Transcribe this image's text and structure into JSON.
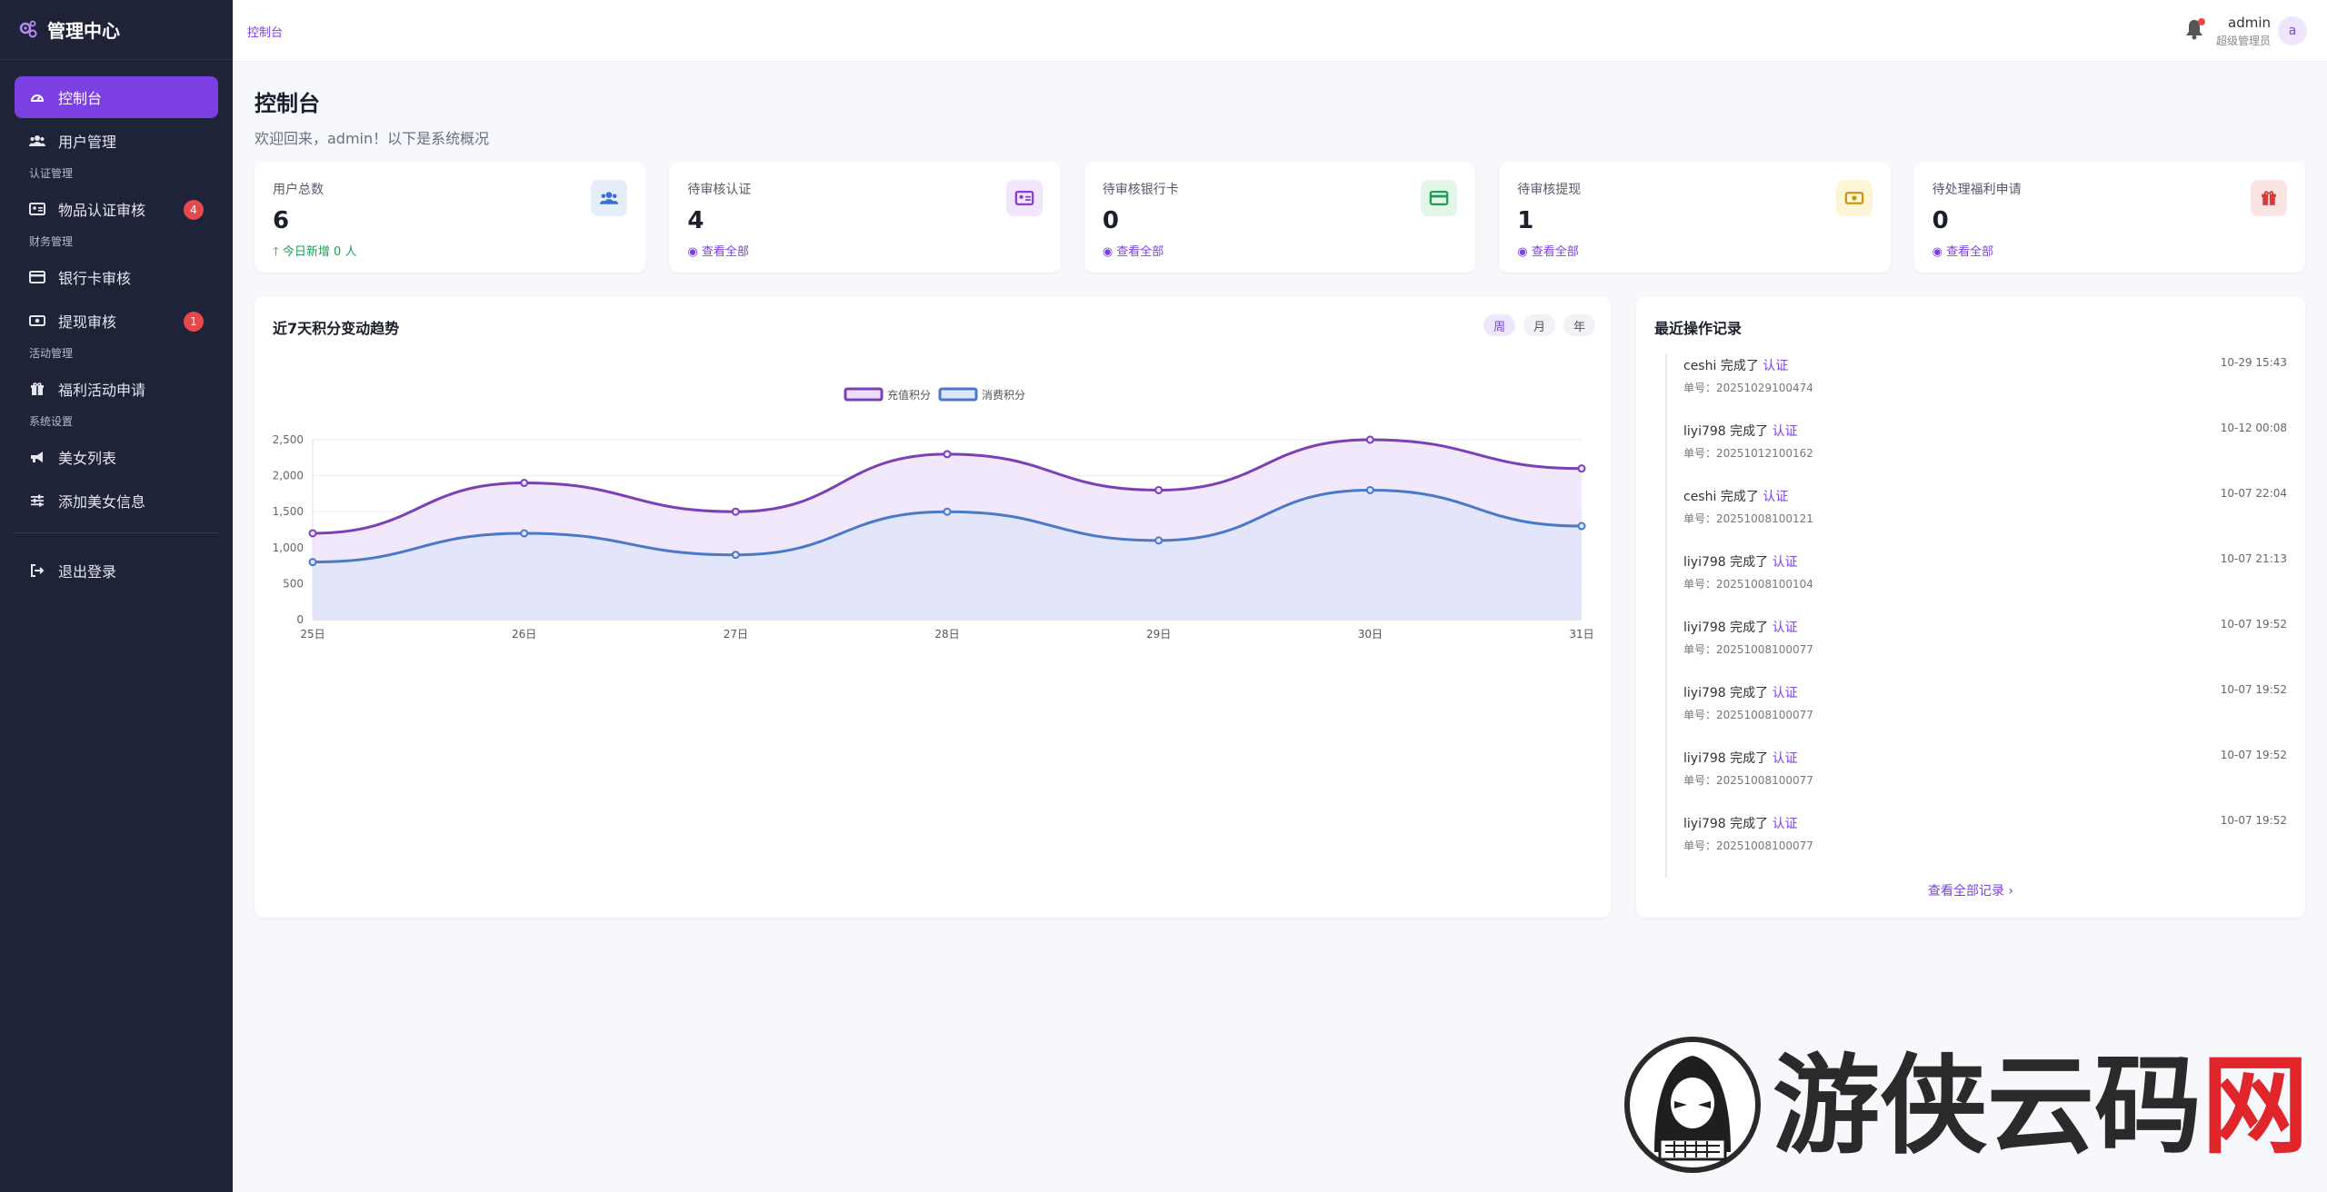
{
  "brand": {
    "title": "管理中心"
  },
  "sidebar": {
    "items": [
      {
        "label": "控制台",
        "icon": "dashboard-icon",
        "active": true
      },
      {
        "label": "用户管理",
        "icon": "users-icon"
      },
      {
        "section": "认证管理"
      },
      {
        "label": "物品认证审核",
        "icon": "id-card-icon",
        "badge": "4"
      },
      {
        "section": "财务管理"
      },
      {
        "label": "银行卡审核",
        "icon": "credit-card-icon"
      },
      {
        "label": "提现审核",
        "icon": "money-icon",
        "badge": "1"
      },
      {
        "section": "活动管理"
      },
      {
        "label": "福利活动申请",
        "icon": "gift-icon"
      },
      {
        "section": "系统设置"
      },
      {
        "label": "美女列表",
        "icon": "megaphone-icon"
      },
      {
        "label": "添加美女信息",
        "icon": "sliders-icon"
      },
      {
        "label": "退出登录",
        "icon": "logout-icon"
      }
    ]
  },
  "topbar": {
    "breadcrumb": "控制台",
    "user": {
      "name": "admin",
      "role": "超级管理员",
      "avatar_letter": "a"
    }
  },
  "page": {
    "title": "控制台",
    "subtitle": "欢迎回来，admin！以下是系统概况"
  },
  "stats": [
    {
      "label": "用户总数",
      "value": "6",
      "sub": "今日新增 0 人",
      "icon": "users-icon",
      "color": "#3b6fd6",
      "bg": "#e6eefc"
    },
    {
      "label": "待审核认证",
      "value": "4",
      "sub": "查看全部",
      "icon": "id-card-icon",
      "color": "#8a3ed8",
      "bg": "#f1e6fb"
    },
    {
      "label": "待审核银行卡",
      "value": "0",
      "sub": "查看全部",
      "icon": "credit-card-icon",
      "color": "#1f9d57",
      "bg": "#e2f6ea"
    },
    {
      "label": "待审核提现",
      "value": "1",
      "sub": "查看全部",
      "icon": "money-icon",
      "color": "#c89a12",
      "bg": "#fdf5d6"
    },
    {
      "label": "待处理福利申请",
      "value": "0",
      "sub": "查看全部",
      "icon": "gift-icon",
      "color": "#d63b3b",
      "bg": "#fbe4e4"
    }
  ],
  "chart_card": {
    "title": "近7天积分变动趋势",
    "periods": [
      "周",
      "月",
      "年"
    ],
    "active_period": "周"
  },
  "chart_data": {
    "type": "line",
    "categories": [
      "25日",
      "26日",
      "27日",
      "28日",
      "29日",
      "30日",
      "31日"
    ],
    "series": [
      {
        "name": "充值积分",
        "values": [
          1200,
          1900,
          1500,
          2300,
          1800,
          2500,
          2100
        ],
        "color": "#7b3fb8",
        "fill": "#ede0fb"
      },
      {
        "name": "消费积分",
        "values": [
          800,
          1200,
          900,
          1500,
          1100,
          1800,
          1300
        ],
        "color": "#4a79c8",
        "fill": "#dde4fb"
      }
    ],
    "ylim": [
      0,
      2500
    ],
    "yticks": [
      0,
      500,
      1000,
      1500,
      2000,
      2500
    ],
    "ytick_labels": [
      "0",
      "500",
      "1,000",
      "1,500",
      "2,000",
      "2,500"
    ],
    "legend": "top-center",
    "grid": true
  },
  "logs": {
    "title": "最近操作记录",
    "items": [
      {
        "user": "ceshi",
        "verb": "完成了",
        "obj": "认证",
        "order": "单号：20251029100474",
        "time": "10-29 15:43"
      },
      {
        "user": "liyi798",
        "verb": "完成了",
        "obj": "认证",
        "order": "单号：20251012100162",
        "time": "10-12 00:08"
      },
      {
        "user": "ceshi",
        "verb": "完成了",
        "obj": "认证",
        "order": "单号：20251008100121",
        "time": "10-07 22:04"
      },
      {
        "user": "liyi798",
        "verb": "完成了",
        "obj": "认证",
        "order": "单号：20251008100104",
        "time": "10-07 21:13"
      },
      {
        "user": "liyi798",
        "verb": "完成了",
        "obj": "认证",
        "order": "单号：20251008100077",
        "time": "10-07 19:52"
      },
      {
        "user": "liyi798",
        "verb": "完成了",
        "obj": "认证",
        "order": "单号：20251008100077",
        "time": "10-07 19:52"
      },
      {
        "user": "liyi798",
        "verb": "完成了",
        "obj": "认证",
        "order": "单号：20251008100077",
        "time": "10-07 19:52"
      },
      {
        "user": "liyi798",
        "verb": "完成了",
        "obj": "认证",
        "order": "单号：20251008100077",
        "time": "10-07 19:52"
      }
    ],
    "view_all": "查看全部记录 ›"
  },
  "watermark": {
    "text": "游侠云码网"
  }
}
